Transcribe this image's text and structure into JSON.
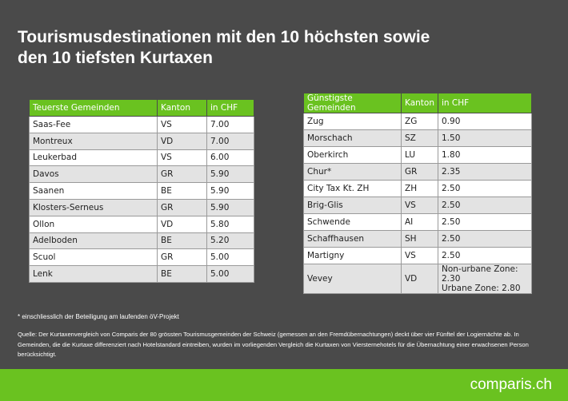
{
  "title_line1": "Tourismusdestinationen mit den 10 höchsten sowie",
  "title_line2": "den 10 tiefsten Kurtaxen",
  "left_table": {
    "headers": [
      "Teuerste Gemeinden",
      "Kanton",
      "in CHF"
    ],
    "rows": [
      [
        "Saas-Fee",
        "VS",
        "7.00"
      ],
      [
        "Montreux",
        "VD",
        "7.00"
      ],
      [
        "Leukerbad",
        "VS",
        "6.00"
      ],
      [
        "Davos",
        "GR",
        "5.90"
      ],
      [
        "Saanen",
        "BE",
        "5.90"
      ],
      [
        "Klosters-Serneus",
        "GR",
        "5.90"
      ],
      [
        "Ollon",
        "VD",
        "5.80"
      ],
      [
        "Adelboden",
        "BE",
        "5.20"
      ],
      [
        "Scuol",
        "GR",
        "5.00"
      ],
      [
        "Lenk",
        "BE",
        "5.00"
      ]
    ]
  },
  "right_table": {
    "headers": [
      "Günstigste Gemeinden",
      "Kanton",
      "in CHF"
    ],
    "rows": [
      [
        "Zug",
        "ZG",
        "0.90"
      ],
      [
        "Morschach",
        "SZ",
        "1.50"
      ],
      [
        "Oberkirch",
        "LU",
        "1.80"
      ],
      [
        "Chur*",
        "GR",
        "2.35"
      ],
      [
        "City Tax Kt. ZH",
        "ZH",
        "2.50"
      ],
      [
        "Brig-Glis",
        "VS",
        "2.50"
      ],
      [
        "Schwende",
        "AI",
        "2.50"
      ],
      [
        "Schaffhausen",
        "SH",
        "2.50"
      ],
      [
        "Martigny",
        "VS",
        "2.50"
      ],
      [
        "Vevey",
        "VD",
        "Non-urbane Zone: 2.30",
        "Urbane Zone: 2.80"
      ]
    ]
  },
  "footnote": "* einschliesslich der Beteiligung am laufenden öV-Projekt",
  "source": "Quelle: Der Kurtaxenvergleich von Comparis der 80 grössten Tourismusgemeinden der Schweiz (gemessen an den Fremdübernachtungen) deckt über vier Fünftel der Logiernächte ab. In Gemeinden, die die Kurtaxe differenziert nach Hotelstandard eintreiben, wurden im vorliegenden Vergleich die Kurtaxen von Viersternehotels für die Übernachtung einer erwachsenen Person berücksichtigt.",
  "logo": "comparis.ch",
  "colors": {
    "background": "#4a4a4a",
    "accent": "#6ac220"
  }
}
